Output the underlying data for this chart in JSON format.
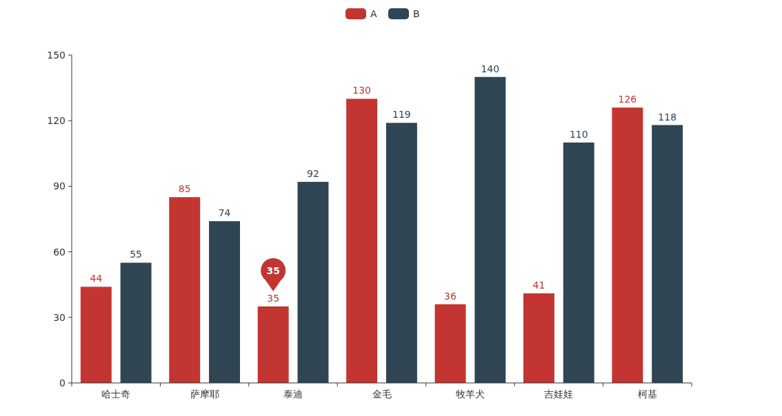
{
  "chart_data": {
    "type": "bar",
    "categories": [
      "哈士奇",
      "萨摩耶",
      "泰迪",
      "金毛",
      "牧羊犬",
      "吉娃娃",
      "柯基"
    ],
    "series": [
      {
        "name": "A",
        "color": "#c23531",
        "values": [
          44,
          85,
          35,
          130,
          36,
          41,
          126
        ]
      },
      {
        "name": "B",
        "color": "#2f4554",
        "values": [
          55,
          74,
          92,
          119,
          140,
          110,
          118
        ]
      }
    ],
    "ylim": [
      0,
      150
    ],
    "yticks": [
      0,
      30,
      60,
      90,
      120,
      150
    ],
    "data_labels": true,
    "legend": "top",
    "grid": false,
    "annotations": [
      "35"
    ]
  }
}
